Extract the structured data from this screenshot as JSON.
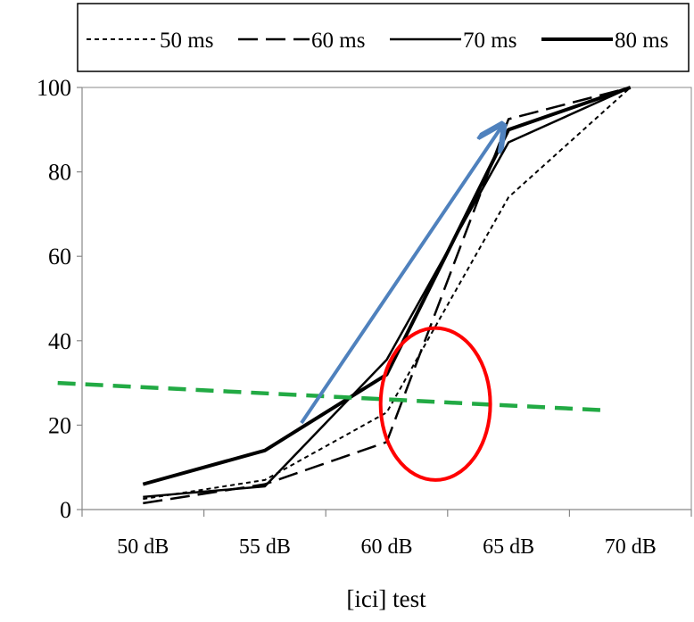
{
  "chart_data": {
    "type": "line",
    "title": "",
    "xlabel": "[ici] test",
    "ylabel": "",
    "categories": [
      "50 dB",
      "55 dB",
      "60 dB",
      "65 dB",
      "70 dB"
    ],
    "ylim": [
      0,
      100
    ],
    "yticks": [
      "0",
      "20",
      "40",
      "60",
      "80",
      "100"
    ],
    "grid": false,
    "legend_position": "top",
    "series": [
      {
        "name": "50 ms",
        "style": "dotted",
        "width": 2,
        "values": [
          2.5,
          7,
          23,
          74,
          100
        ]
      },
      {
        "name": "60 ms",
        "style": "dashed",
        "width": 2.5,
        "values": [
          1.5,
          6,
          16,
          92.5,
          100
        ]
      },
      {
        "name": "70 ms",
        "style": "solid",
        "width": 2.5,
        "values": [
          3,
          5.5,
          35.5,
          87,
          100
        ]
      },
      {
        "name": "80 ms",
        "style": "solid",
        "width": 4,
        "values": [
          6,
          14,
          32,
          90,
          100
        ]
      }
    ],
    "annotations": {
      "arrow": {
        "color": "#4f81bd",
        "from": [
          1.3,
          20.5
        ],
        "to": [
          2.95,
          91
        ]
      },
      "circle": {
        "color": "#ff0000",
        "center": [
          2.4,
          25
        ],
        "rx": 0.45,
        "ry": 18
      },
      "threshold_line": {
        "color": "#22aa44",
        "from": [
          -0.7,
          30
        ],
        "to": [
          3.8,
          23.5
        ]
      }
    }
  }
}
